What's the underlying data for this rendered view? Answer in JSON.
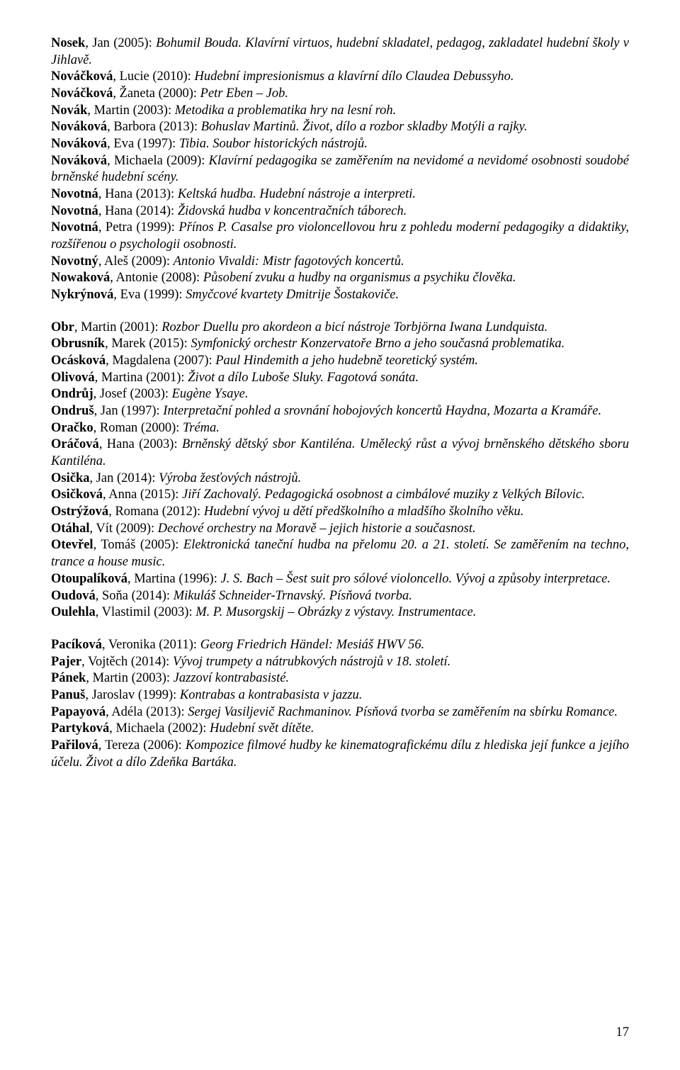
{
  "page_number": "17",
  "entries": [
    {
      "author": "Nosek",
      "first": ", Jan (2005): ",
      "title": "Bohumil Bouda. Klavírní virtuos, hudební skladatel, pedagog, zakladatel hudební školy v Jihlavě."
    },
    {
      "author": "Nováčková",
      "first": ", Lucie (2010): ",
      "title": "Hudební impresionismus a klavírní dílo Claudea Debussyho."
    },
    {
      "author": "Nováčková",
      "first": ", Žaneta (2000): ",
      "title": "Petr Eben – Job."
    },
    {
      "author": "Novák",
      "first": ", Martin (2003): ",
      "title": "Metodika a problematika hry na lesní roh."
    },
    {
      "author": "Nováková",
      "first": ", Barbora (2013): ",
      "title": "Bohuslav Martinů. Život, dílo a rozbor skladby Motýli a rajky."
    },
    {
      "author": "Nováková",
      "first": ", Eva (1997): ",
      "title": "Tibia. Soubor historických nástrojů."
    },
    {
      "author": "Nováková",
      "first": ", Michaela (2009): ",
      "title": "Klavírní pedagogika se zaměřením na nevidomé a nevidomé osobnosti soudobé brněnské hudební scény."
    },
    {
      "author": "Novotná",
      "first": ", Hana (2013): ",
      "title": "Keltská hudba. Hudební nástroje a interpreti."
    },
    {
      "author": "Novotná",
      "first": ", Hana (2014): ",
      "title": "Židovská hudba v koncentračních táborech."
    },
    {
      "author": "Novotná",
      "first": ", Petra (1999): ",
      "title": "Přínos P. Casalse pro violoncellovou hru z pohledu moderní pedagogiky a didaktiky, rozšířenou o psychologii osobnosti."
    },
    {
      "author": "Novotný",
      "first": ", Aleš (2009): ",
      "title": "Antonio Vivaldi: Mistr fagotových koncertů."
    },
    {
      "author": "Nowaková",
      "first": ", Antonie (2008): ",
      "title": "Působení zvuku a hudby na organismus a psychiku člověka."
    },
    {
      "author": "Nykrýnová",
      "first": ", Eva (1999): ",
      "title": "Smyčcové kvartety Dmitrije Šostakoviče."
    },
    {
      "gap": true
    },
    {
      "author": "Obr",
      "first": ", Martin (2001): ",
      "title": "Rozbor Duellu pro akordeon a bicí nástroje Torbjörna Iwana Lundquista."
    },
    {
      "author": "Obrusník",
      "first": ", Marek (2015): ",
      "title": "Symfonický orchestr Konzervatoře Brno a jeho současná problematika."
    },
    {
      "author": "Ocásková",
      "first": ", Magdalena (2007): ",
      "title": "Paul Hindemith a jeho hudebně teoretický systém."
    },
    {
      "author": "Olivová",
      "first": ", Martina (2001): ",
      "title": "Život a dílo Luboše Sluky. Fagotová sonáta."
    },
    {
      "author": "Ondrůj",
      "first": ", Josef (2003): ",
      "title": "Eugène Ysaye."
    },
    {
      "author": "Ondruš",
      "first": ", Jan (1997): ",
      "title": "Interpretační pohled a srovnání hobojových koncertů Haydna, Mozarta a Kramáře."
    },
    {
      "author": "Oračko",
      "first": ", Roman (2000): ",
      "title": "Tréma."
    },
    {
      "author": "Oráčová",
      "first": ", Hana (2003): ",
      "title": "Brněnský dětský sbor Kantiléna. Umělecký růst a vývoj brněnského dětského sboru Kantiléna."
    },
    {
      "author": "Osička",
      "first": ", Jan (2014): ",
      "title": "Výroba žesťových nástrojů."
    },
    {
      "author": "Osičková",
      "first": ", Anna (2015): ",
      "title": "Jiří Zachovalý. Pedagogická osobnost a cimbálové muziky z Velkých Bílovic."
    },
    {
      "author": "Ostrýžová",
      "first": ", Romana (2012): ",
      "title": "Hudební vývoj u dětí předškolního a mladšího školního věku."
    },
    {
      "author": "Otáhal",
      "first": ", Vít (2009): ",
      "title": "Dechové orchestry na Moravě – jejich historie a současnost."
    },
    {
      "author": "Otevřel",
      "first": ", Tomáš (2005): ",
      "title": "Elektronická taneční hudba na přelomu 20. a 21. století. Se zaměřením na techno, trance a house music."
    },
    {
      "author": "Otoupalíková",
      "first": ", Martina (1996): ",
      "title": "J. S. Bach – Šest suit pro sólové violoncello. Vývoj a způsoby interpretace."
    },
    {
      "author": "Oudová",
      "first": ", Soňa (2014): ",
      "title": "Mikuláš Schneider-Trnavský. Písňová tvorba."
    },
    {
      "author": "Oulehla",
      "first": ", Vlastimil (2003): ",
      "title": "M. P. Musorgskij – Obrázky z výstavy. Instrumentace."
    },
    {
      "gap": true
    },
    {
      "author": "Pacíková",
      "first": ", Veronika (2011): ",
      "title": "Georg Friedrich Händel: Mesiáš HWV 56."
    },
    {
      "author": "Pajer",
      "first": ", Vojtěch (2014): ",
      "title": "Vývoj trumpety a nátrubkových nástrojů v 18. století."
    },
    {
      "author": "Pánek",
      "first": ", Martin (2003): ",
      "title": "Jazzoví kontrabasisté."
    },
    {
      "author": "Panuš",
      "first": ", Jaroslav (1999): ",
      "title": "Kontrabas a kontrabasista v jazzu."
    },
    {
      "author": "Papayová",
      "first": ", Adéla (2013): ",
      "title": "Sergej Vasiljevič Rachmaninov. Písňová tvorba se zaměřením na sbírku Romance."
    },
    {
      "author": "Partyková",
      "first": ", Michaela (2002): ",
      "title": "Hudební svět dítěte."
    },
    {
      "author": "Pařilová",
      "first": ", Tereza (2006): ",
      "title": "Kompozice filmové hudby ke kinematografickému dílu z hlediska její funkce a jejího účelu. Život a dílo Zdeňka Bartáka."
    }
  ]
}
